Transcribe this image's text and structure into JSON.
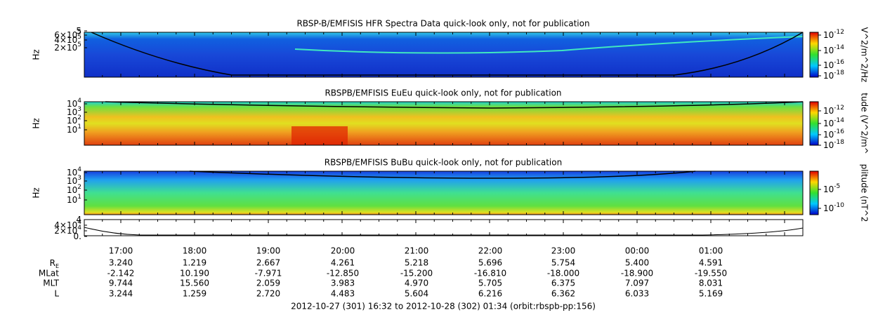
{
  "panels": [
    {
      "title": "RBSP-B/EMFISIS  HFR Spectra Data quick-look only, not for publication",
      "ylabel": "Hz",
      "yticks": [
        {
          "text": "5"
        },
        {
          "text": "6×10",
          "sup": "5"
        },
        {
          "text": "4×10",
          "sup": "5"
        },
        {
          "text": "2×10",
          "sup": "5"
        }
      ],
      "colorbar_label": "V^2/m^2/Hz",
      "colorbar_ticks": [
        {
          "text": "10",
          "sup": "-12"
        },
        {
          "text": "10",
          "sup": "-14"
        },
        {
          "text": "10",
          "sup": "-16"
        },
        {
          "text": "10",
          "sup": "-18"
        }
      ]
    },
    {
      "title": "RBSPB/EMFISIS  EuEu quick-look only, not for publication",
      "ylabel": "Hz",
      "yticks": [
        {
          "text": "10",
          "sup": "4"
        },
        {
          "text": "10",
          "sup": "3"
        },
        {
          "text": "10",
          "sup": "2"
        },
        {
          "text": "10",
          "sup": "1"
        }
      ],
      "colorbar_label": "tude (V^2/m^",
      "colorbar_ticks": [
        {
          "text": "10",
          "sup": "-12"
        },
        {
          "text": "10",
          "sup": "-14"
        },
        {
          "text": "10",
          "sup": "-16"
        },
        {
          "text": "10",
          "sup": "-18"
        }
      ]
    },
    {
      "title": "RBSPB/EMFISIS  BuBu quick-look only, not for publication",
      "ylabel": "Hz",
      "yticks": [
        {
          "text": "10",
          "sup": "4"
        },
        {
          "text": "10",
          "sup": "3"
        },
        {
          "text": "10",
          "sup": "2"
        },
        {
          "text": "10",
          "sup": "1"
        }
      ],
      "colorbar_label": "plitude (nT^2",
      "colorbar_ticks": [
        {
          "text": "10",
          "sup": "-5"
        },
        {
          "text": "10",
          "sup": "-10"
        }
      ]
    },
    {
      "yticks": [
        {
          "text": "4"
        },
        {
          "text": "4×10",
          "sup": "4"
        },
        {
          "text": "2×10",
          "sup": "4"
        },
        {
          "text": "0."
        }
      ]
    }
  ],
  "time_labels": [
    "17:00",
    "18:00",
    "19:00",
    "20:00",
    "21:00",
    "22:00",
    "23:00",
    "00:00",
    "01:00"
  ],
  "ephemeris": [
    {
      "label": "R",
      "sub": "E",
      "values": [
        "3.240",
        "1.219",
        "2.667",
        "4.261",
        "5.218",
        "5.696",
        "5.754",
        "5.400",
        "4.591"
      ]
    },
    {
      "label": "MLat",
      "values": [
        "-2.142",
        "10.190",
        "-7.971",
        "-12.850",
        "-15.200",
        "-16.810",
        "-18.000",
        "-18.900",
        "-19.550"
      ]
    },
    {
      "label": "MLT",
      "values": [
        "9.744",
        "15.560",
        "2.059",
        "3.983",
        "4.970",
        "5.705",
        "6.375",
        "7.097",
        "8.031"
      ]
    },
    {
      "label": "L",
      "values": [
        "3.244",
        "1.259",
        "2.720",
        "4.483",
        "5.604",
        "6.216",
        "6.362",
        "6.033",
        "5.169"
      ]
    }
  ],
  "footer": "2012-10-27 (301) 16:32 to 2012-10-28 (302) 01:34 (orbit:rbspb-pp:156)"
}
